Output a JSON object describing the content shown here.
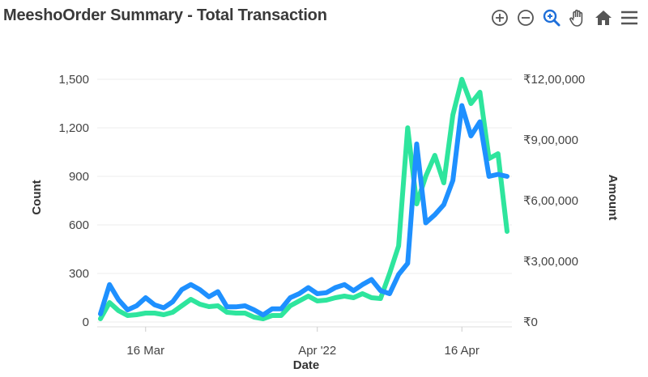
{
  "header": {
    "brand": "Meesho",
    "title": "Order Summary - Total Transaction"
  },
  "toolbar": {
    "icons": [
      "zoom-in-icon",
      "zoom-out-icon",
      "zoom-selection-icon",
      "pan-hand-icon",
      "home-reset-icon",
      "menu-icon"
    ]
  },
  "chart_data": {
    "type": "line",
    "xlabel": "Date",
    "ylabel_left": "Count",
    "ylabel_right": "Amount",
    "x_ticks": [
      "16 Mar",
      "Apr '22",
      "16 Apr"
    ],
    "y_left": {
      "min": 0,
      "max": 1500,
      "ticks": [
        "0",
        "300",
        "600",
        "900",
        "1,200",
        "1,500"
      ]
    },
    "y_right": {
      "min": 0,
      "max": 1200000,
      "ticks": [
        "₹0",
        "₹3,00,000",
        "₹6,00,000",
        "₹9,00,000",
        "₹12,00,000"
      ]
    },
    "grid": "horizontal",
    "series": [
      {
        "axis": "left",
        "color": "#2ee59d",
        "values": [
          20,
          120,
          70,
          40,
          45,
          55,
          55,
          45,
          60,
          100,
          140,
          110,
          95,
          100,
          60,
          55,
          55,
          30,
          20,
          40,
          40,
          100,
          130,
          160,
          130,
          135,
          150,
          160,
          150,
          175,
          150,
          145,
          300,
          470,
          1200,
          730,
          900,
          1030,
          860,
          1280,
          1500,
          1350,
          1420,
          1010,
          1040,
          560
        ]
      },
      {
        "axis": "right",
        "color": "#1e90ff",
        "values": [
          40000,
          185000,
          110000,
          60000,
          80000,
          120000,
          85000,
          70000,
          100000,
          160000,
          185000,
          160000,
          125000,
          150000,
          75000,
          75000,
          80000,
          60000,
          35000,
          65000,
          65000,
          120000,
          140000,
          170000,
          140000,
          145000,
          170000,
          185000,
          155000,
          185000,
          210000,
          155000,
          140000,
          235000,
          290000,
          880000,
          490000,
          530000,
          580000,
          700000,
          1070000,
          920000,
          990000,
          720000,
          730000,
          720000
        ]
      }
    ]
  }
}
